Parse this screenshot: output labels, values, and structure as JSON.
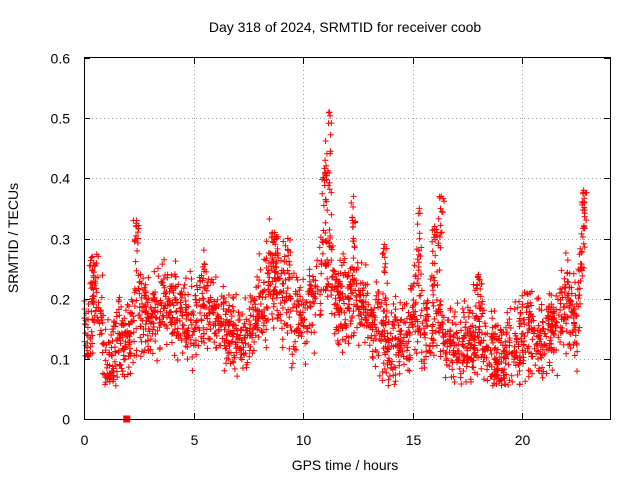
{
  "chart_data": {
    "type": "scatter",
    "title": "Day 318 of 2024, SRMTID for receiver coob",
    "xlabel": "GPS time / hours",
    "ylabel": "SRMTID / TECUs",
    "xlim": [
      0,
      24
    ],
    "ylim": [
      0,
      0.6
    ],
    "xticks": [
      0,
      5,
      10,
      15,
      20
    ],
    "yticks": [
      0,
      0.1,
      0.2,
      0.3,
      0.4,
      0.5,
      0.6
    ],
    "grid": true,
    "marker": "+",
    "color": "#ff0000",
    "envelope": [
      {
        "x": 0.0,
        "y": 0.15
      },
      {
        "x": 0.3,
        "y": 0.13
      },
      {
        "x": 0.5,
        "y": 0.2
      },
      {
        "x": 0.8,
        "y": 0.18
      },
      {
        "x": 1.0,
        "y": 0.08
      },
      {
        "x": 1.3,
        "y": 0.1
      },
      {
        "x": 1.6,
        "y": 0.14
      },
      {
        "x": 1.9,
        "y": 0.12
      },
      {
        "x": 2.2,
        "y": 0.14
      },
      {
        "x": 2.5,
        "y": 0.19
      },
      {
        "x": 3.0,
        "y": 0.17
      },
      {
        "x": 3.5,
        "y": 0.19
      },
      {
        "x": 4.0,
        "y": 0.19
      },
      {
        "x": 4.5,
        "y": 0.17
      },
      {
        "x": 5.0,
        "y": 0.15
      },
      {
        "x": 5.5,
        "y": 0.19
      },
      {
        "x": 6.0,
        "y": 0.17
      },
      {
        "x": 6.5,
        "y": 0.16
      },
      {
        "x": 7.0,
        "y": 0.14
      },
      {
        "x": 7.5,
        "y": 0.13
      },
      {
        "x": 8.0,
        "y": 0.18
      },
      {
        "x": 8.5,
        "y": 0.24
      },
      {
        "x": 9.0,
        "y": 0.21
      },
      {
        "x": 9.5,
        "y": 0.17
      },
      {
        "x": 10.0,
        "y": 0.16
      },
      {
        "x": 10.5,
        "y": 0.2
      },
      {
        "x": 11.0,
        "y": 0.28
      },
      {
        "x": 11.5,
        "y": 0.2
      },
      {
        "x": 12.0,
        "y": 0.19
      },
      {
        "x": 12.5,
        "y": 0.2
      },
      {
        "x": 13.0,
        "y": 0.17
      },
      {
        "x": 13.5,
        "y": 0.14
      },
      {
        "x": 14.0,
        "y": 0.12
      },
      {
        "x": 14.5,
        "y": 0.13
      },
      {
        "x": 15.0,
        "y": 0.17
      },
      {
        "x": 15.5,
        "y": 0.15
      },
      {
        "x": 16.0,
        "y": 0.16
      },
      {
        "x": 16.5,
        "y": 0.13
      },
      {
        "x": 17.0,
        "y": 0.12
      },
      {
        "x": 17.5,
        "y": 0.12
      },
      {
        "x": 18.0,
        "y": 0.14
      },
      {
        "x": 18.5,
        "y": 0.11
      },
      {
        "x": 19.0,
        "y": 0.1
      },
      {
        "x": 19.5,
        "y": 0.12
      },
      {
        "x": 20.0,
        "y": 0.13
      },
      {
        "x": 20.5,
        "y": 0.14
      },
      {
        "x": 21.0,
        "y": 0.13
      },
      {
        "x": 21.5,
        "y": 0.16
      },
      {
        "x": 22.0,
        "y": 0.19
      },
      {
        "x": 22.5,
        "y": 0.17
      },
      {
        "x": 22.8,
        "y": 0.3
      }
    ],
    "peaks": [
      {
        "x": 0.4,
        "y": 0.27
      },
      {
        "x": 2.4,
        "y": 0.33
      },
      {
        "x": 8.7,
        "y": 0.31
      },
      {
        "x": 9.3,
        "y": 0.3
      },
      {
        "x": 11.0,
        "y": 0.43
      },
      {
        "x": 11.2,
        "y": 0.51
      },
      {
        "x": 12.3,
        "y": 0.37
      },
      {
        "x": 13.7,
        "y": 0.29
      },
      {
        "x": 15.3,
        "y": 0.35
      },
      {
        "x": 16.0,
        "y": 0.32
      },
      {
        "x": 16.3,
        "y": 0.37
      },
      {
        "x": 18.0,
        "y": 0.24
      },
      {
        "x": 22.8,
        "y": 0.38
      }
    ],
    "data_span_hours": [
      0,
      22.85
    ],
    "square_marker": {
      "x": 1.95,
      "y": 0.0
    }
  }
}
